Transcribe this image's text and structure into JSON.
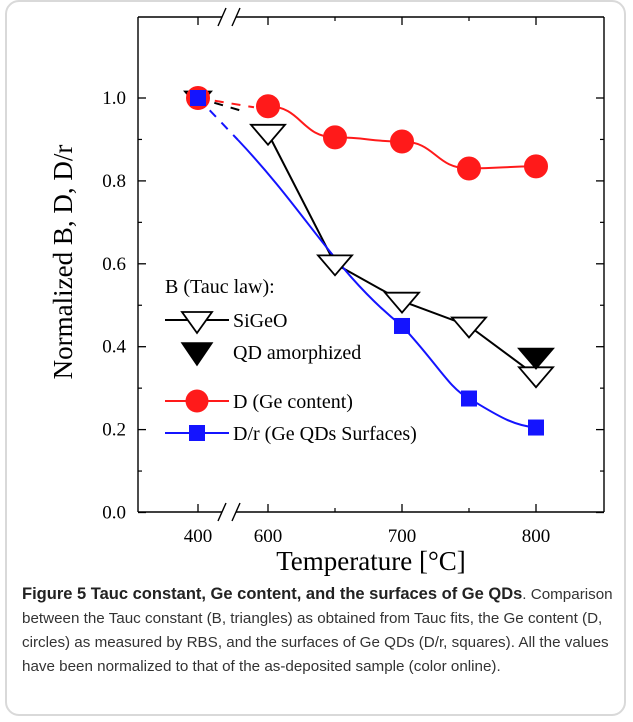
{
  "chart_data": {
    "type": "line",
    "xlabel": "Temperature [°C]",
    "ylabel": "Normalized B, D, D/r",
    "ylim": [
      0.0,
      1.1
    ],
    "xlim_note": "broken axis between 400 and 600",
    "x_ticks": [
      "400",
      "600",
      "700",
      "800"
    ],
    "y_ticks": [
      "0.0",
      "0.2",
      "0.4",
      "0.6",
      "0.8",
      "1.0"
    ],
    "legend": {
      "group_title": "B (Tauc law):",
      "entries": [
        {
          "key": "sigeo",
          "label": "SiGeO"
        },
        {
          "key": "qd_amorphized",
          "label": "QD amorphized"
        },
        {
          "key": "d",
          "label": "D (Ge content)"
        },
        {
          "key": "dr",
          "label": "D/r (Ge QDs Surfaces)"
        }
      ]
    },
    "series": [
      {
        "key": "d",
        "name": "D (Ge content)",
        "marker": "circle",
        "color": "#ff1a1a",
        "x": [
          400,
          600,
          650,
          700,
          750,
          800
        ],
        "y": [
          1.0,
          0.98,
          0.905,
          0.895,
          0.83,
          0.835
        ]
      },
      {
        "key": "sigeo",
        "name": "SiGeO",
        "marker": "triangle-down-open",
        "color": "#000000",
        "x": [
          400,
          600,
          650,
          700,
          750,
          800
        ],
        "y": [
          1.0,
          0.915,
          0.6,
          0.51,
          0.45,
          0.33
        ]
      },
      {
        "key": "qd_amorphized",
        "name": "QD amorphized",
        "marker": "triangle-down-filled",
        "color": "#000000",
        "x": [
          800
        ],
        "y": [
          0.375
        ]
      },
      {
        "key": "dr",
        "name": "D/r (Ge QDs Surfaces)",
        "marker": "square",
        "color": "#1414ff",
        "x": [
          400,
          700,
          750,
          800
        ],
        "y": [
          1.0,
          0.45,
          0.275,
          0.205
        ]
      }
    ]
  },
  "caption": {
    "title": "Figure 5 Tauc constant, Ge content, and the surfaces of Ge QDs",
    "body": ". Comparison between the Tauc constant (B, triangles) as obtained from Tauc fits, the Ge content (D, circles) as measured by RBS, and the surfaces of Ge QDs (D/r, squares). All the values have been normalized to that of the as-deposited sample (color online)."
  }
}
